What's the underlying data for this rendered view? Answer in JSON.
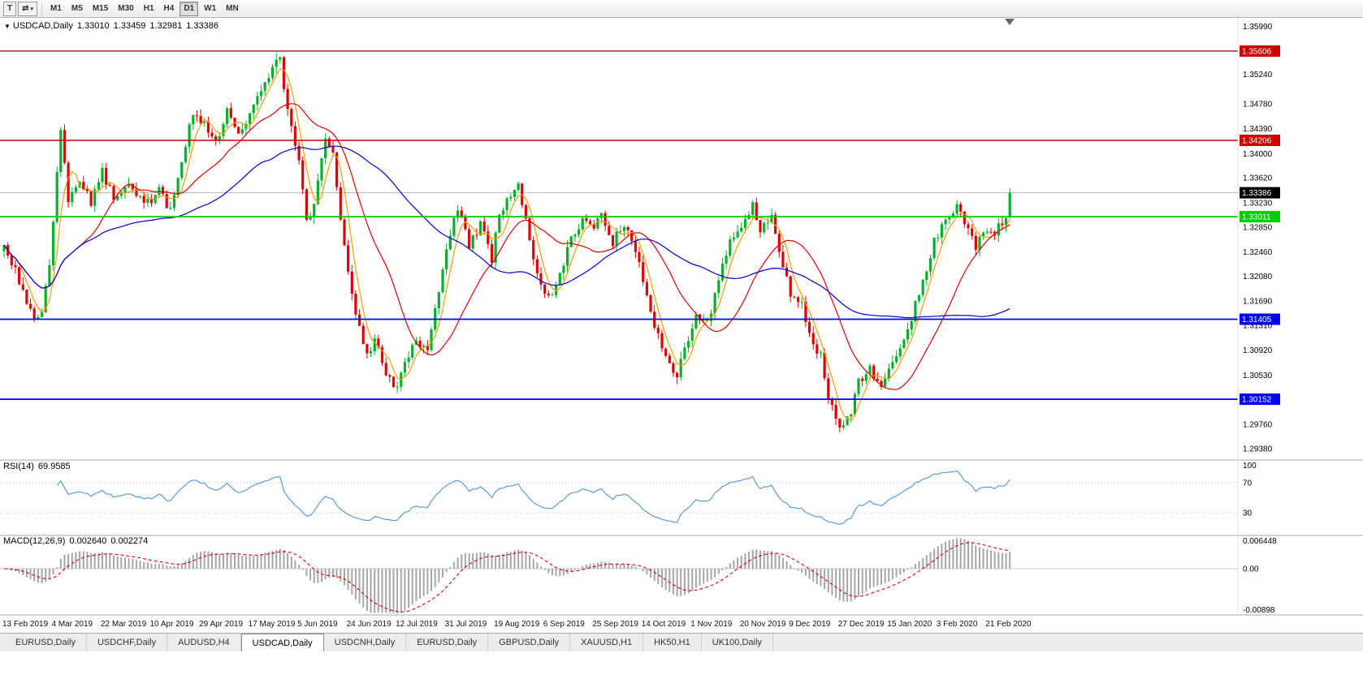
{
  "toolbar": {
    "tool_t_label": "T",
    "arrows_icon": "⇄",
    "caret_icon": "▾",
    "timeframes": [
      "M1",
      "M5",
      "M15",
      "M30",
      "H1",
      "H4",
      "D1",
      "W1",
      "MN"
    ],
    "active_timeframe": "D1"
  },
  "chart_header": {
    "triangle_icon": "▼",
    "symbol": "USDCAD,Daily",
    "open": "1.33010",
    "high": "1.33459",
    "low": "1.32981",
    "close": "1.33386"
  },
  "price_axis": {
    "ticks": [
      "1.35990",
      "1.35240",
      "1.34780",
      "1.34390",
      "1.34000",
      "1.33620",
      "1.33230",
      "1.32850",
      "1.32460",
      "1.32080",
      "1.31690",
      "1.31310",
      "1.30920",
      "1.30530",
      "1.29760",
      "1.29380"
    ],
    "badges": [
      {
        "label": "1.35606",
        "value": 1.35606,
        "bg": "#cc0000",
        "name": "resistance-price-badge-1"
      },
      {
        "label": "1.34206",
        "value": 1.34206,
        "bg": "#cc0000",
        "name": "resistance-price-badge-2"
      },
      {
        "label": "1.33386",
        "value": 1.33386,
        "bg": "#000000",
        "name": "bid-price-badge"
      },
      {
        "label": "1.33011",
        "value": 1.33011,
        "bg": "#00cc00",
        "name": "support-price-badge-green"
      },
      {
        "label": "1.31405",
        "value": 1.31405,
        "bg": "#0000ee",
        "name": "support-price-badge-blue-1"
      },
      {
        "label": "1.30152",
        "value": 1.30152,
        "bg": "#0000ee",
        "name": "support-price-badge-blue-2"
      }
    ]
  },
  "chart_data": {
    "type": "candlestick",
    "symbol": "USDCAD",
    "timeframe": "Daily",
    "bars": 267,
    "price_range": {
      "min": 1.292,
      "max": 1.361
    },
    "x_labels": [
      "13 Feb 2019",
      "4 Mar 2019",
      "22 Mar 2019",
      "10 Apr 2019",
      "29 Apr 2019",
      "17 May 2019",
      "5 Jun 2019",
      "24 Jun 2019",
      "12 Jul 2019",
      "31 Jul 2019",
      "19 Aug 2019",
      "6 Sep 2019",
      "25 Sep 2019",
      "14 Oct 2019",
      "1 Nov 2019",
      "20 Nov 2019",
      "9 Dec 2019",
      "27 Dec 2019",
      "15 Jan 2020",
      "3 Feb 2020",
      "21 Feb 2020"
    ],
    "anchors": [
      [
        0,
        1.325
      ],
      [
        3,
        1.3215
      ],
      [
        6,
        1.3165
      ],
      [
        8,
        1.3135
      ],
      [
        10,
        1.3155
      ],
      [
        12,
        1.323
      ],
      [
        15,
        1.3435
      ],
      [
        17,
        1.333
      ],
      [
        20,
        1.336
      ],
      [
        23,
        1.3325
      ],
      [
        26,
        1.3372
      ],
      [
        29,
        1.333
      ],
      [
        32,
        1.3352
      ],
      [
        35,
        1.3338
      ],
      [
        38,
        1.3322
      ],
      [
        41,
        1.3345
      ],
      [
        44,
        1.331
      ],
      [
        47,
        1.3392
      ],
      [
        50,
        1.3462
      ],
      [
        53,
        1.345
      ],
      [
        56,
        1.3415
      ],
      [
        59,
        1.3468
      ],
      [
        62,
        1.3432
      ],
      [
        65,
        1.3462
      ],
      [
        68,
        1.35
      ],
      [
        71,
        1.3532
      ],
      [
        73,
        1.3552
      ],
      [
        75,
        1.3465
      ],
      [
        78,
        1.3392
      ],
      [
        80,
        1.329
      ],
      [
        82,
        1.332
      ],
      [
        85,
        1.3422
      ],
      [
        87,
        1.3395
      ],
      [
        90,
        1.3255
      ],
      [
        93,
        1.3145
      ],
      [
        96,
        1.3082
      ],
      [
        98,
        1.3112
      ],
      [
        101,
        1.3052
      ],
      [
        104,
        1.3032
      ],
      [
        106,
        1.3072
      ],
      [
        109,
        1.311
      ],
      [
        112,
        1.3088
      ],
      [
        115,
        1.3188
      ],
      [
        117,
        1.3255
      ],
      [
        120,
        1.3318
      ],
      [
        123,
        1.3252
      ],
      [
        126,
        1.3292
      ],
      [
        129,
        1.3232
      ],
      [
        131,
        1.3308
      ],
      [
        134,
        1.333
      ],
      [
        136,
        1.3348
      ],
      [
        138,
        1.3305
      ],
      [
        141,
        1.3205
      ],
      [
        144,
        1.3172
      ],
      [
        147,
        1.3212
      ],
      [
        150,
        1.3268
      ],
      [
        153,
        1.3298
      ],
      [
        156,
        1.3282
      ],
      [
        158,
        1.3308
      ],
      [
        161,
        1.3262
      ],
      [
        164,
        1.329
      ],
      [
        167,
        1.3242
      ],
      [
        169,
        1.3205
      ],
      [
        172,
        1.3132
      ],
      [
        175,
        1.3082
      ],
      [
        178,
        1.3052
      ],
      [
        180,
        1.3092
      ],
      [
        183,
        1.3148
      ],
      [
        186,
        1.3132
      ],
      [
        189,
        1.3202
      ],
      [
        192,
        1.3258
      ],
      [
        195,
        1.3288
      ],
      [
        198,
        1.3318
      ],
      [
        200,
        1.3282
      ],
      [
        203,
        1.3302
      ],
      [
        205,
        1.3242
      ],
      [
        208,
        1.3182
      ],
      [
        211,
        1.3162
      ],
      [
        213,
        1.3112
      ],
      [
        216,
        1.3082
      ],
      [
        218,
        1.3022
      ],
      [
        221,
        1.2972
      ],
      [
        224,
        1.2992
      ],
      [
        226,
        1.3042
      ],
      [
        229,
        1.3062
      ],
      [
        232,
        1.3032
      ],
      [
        234,
        1.3062
      ],
      [
        237,
        1.3092
      ],
      [
        240,
        1.3142
      ],
      [
        243,
        1.3202
      ],
      [
        246,
        1.3262
      ],
      [
        249,
        1.3292
      ],
      [
        252,
        1.3318
      ],
      [
        254,
        1.3292
      ],
      [
        257,
        1.3252
      ],
      [
        259,
        1.3282
      ],
      [
        262,
        1.3272
      ],
      [
        264,
        1.3295
      ],
      [
        265,
        1.3301
      ],
      [
        266,
        1.33386
      ]
    ],
    "last_bar": {
      "open": 1.3301,
      "high": 1.33459,
      "low": 1.32981,
      "close": 1.33386
    },
    "current_price_line": 1.33386,
    "candle_up_color": "#00b227",
    "candle_down_color": "#e00000",
    "moving_averages": [
      {
        "period": 5,
        "color": "#ff9900"
      },
      {
        "period": 20,
        "color": "#e00000"
      },
      {
        "period": 55,
        "color": "#0000d0"
      }
    ],
    "h_lines": [
      {
        "value": 1.35606,
        "color": "#cc0000",
        "width": 1.4,
        "name": "resistance-line-1"
      },
      {
        "value": 1.34206,
        "color": "#cc0000",
        "width": 1.4,
        "name": "resistance-line-2"
      },
      {
        "value": 1.33011,
        "color": "#00cc00",
        "width": 1.8,
        "name": "support-line-green"
      },
      {
        "value": 1.31405,
        "color": "#0000ee",
        "width": 1.8,
        "name": "support-line-blue-1"
      },
      {
        "value": 1.30152,
        "color": "#0000ee",
        "width": 1.8,
        "name": "support-line-blue-2"
      }
    ],
    "indicators": {
      "rsi": {
        "label": "RSI(14)",
        "value": "69.9585",
        "period": 14,
        "range": [
          0,
          100
        ],
        "levels": [
          70,
          30
        ],
        "axis": [
          {
            "label": "100",
            "value": 100
          },
          {
            "label": "70",
            "value": 70
          },
          {
            "label": "30",
            "value": 30
          }
        ],
        "color": "#5b9bd5"
      },
      "macd": {
        "label": "MACD(12,26,9)",
        "value_main": "0.002640",
        "value_signal": "0.002274",
        "fast": 12,
        "slow": 26,
        "signal": 9,
        "range": [
          -0.00898,
          0.006448
        ],
        "axis": [
          {
            "label": "0.006448",
            "value": 0.006448
          },
          {
            "label": "0.00",
            "value": 0
          },
          {
            "label": "-0.00898",
            "value": -0.00898
          }
        ],
        "histogram_color": "#a6a6a6",
        "signal_color": "#dd0000"
      }
    }
  },
  "bottom_tabs": {
    "tabs": [
      "EURUSD,Daily",
      "USDCHF,Daily",
      "AUDUSD,H4",
      "USDCAD,Daily",
      "USDCNH,Daily",
      "EURUSD,Daily",
      "GBPUSD,Daily",
      "XAUUSD,H1",
      "HK50,H1",
      "UK100,Daily"
    ],
    "active_index": 3
  }
}
